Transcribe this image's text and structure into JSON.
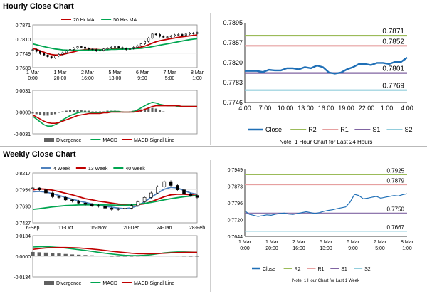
{
  "titles": {
    "hourly": "Hourly Close Chart",
    "weekly": "Weekly Close Chart"
  },
  "colors": {
    "price_line": "#1f6fb6",
    "ma_red": "#c00000",
    "ma_green": "#00a550",
    "ma_blue": "#4f81bd",
    "r2": "#9bbb59",
    "r1": "#e6a0a0",
    "s1": "#8064a2",
    "s2": "#92cddc",
    "divergence": "#606060",
    "grid": "#e0e0e0",
    "axis": "#000000"
  },
  "chart_data": [
    {
      "id": "hourly-candles",
      "type": "candlestick",
      "title": "",
      "legend": [
        "20 Hr MA",
        "50 Hrs MA"
      ],
      "legend_position": "top",
      "yticks": [
        "0.7871",
        "0.7810",
        "0.7749",
        "0.7688"
      ],
      "ylim": [
        0.7688,
        0.7871
      ],
      "xticks": [
        [
          "1 Mar",
          "0:00"
        ],
        [
          "1 Mar",
          "20:00"
        ],
        [
          "2 Mar",
          "16:00"
        ],
        [
          "5 Mar",
          "13:00"
        ],
        [
          "6 Mar",
          "9:00"
        ],
        [
          "7 Mar",
          "5:00"
        ],
        [
          "8 Mar",
          "1:00"
        ]
      ],
      "series": [
        {
          "name": "Close",
          "values": [
            0.7765,
            0.7758,
            0.7748,
            0.7742,
            0.7735,
            0.773,
            0.7738,
            0.7745,
            0.7752,
            0.776,
            0.7766,
            0.7772,
            0.7778,
            0.7776,
            0.777,
            0.7768,
            0.7765,
            0.776,
            0.7762,
            0.7768,
            0.7772,
            0.7775,
            0.7778,
            0.7774,
            0.777,
            0.7766,
            0.777,
            0.7775,
            0.7782,
            0.779,
            0.78,
            0.7815,
            0.7832,
            0.783,
            0.7822,
            0.7818,
            0.782,
            0.7824,
            0.7828,
            0.783,
            0.7826,
            0.7832,
            0.7836,
            0.7834,
            0.7838
          ]
        },
        {
          "name": "20 Hr MA",
          "values": [
            0.777,
            0.7766,
            0.776,
            0.7754,
            0.7748,
            0.7744,
            0.7742,
            0.7742,
            0.7744,
            0.7748,
            0.7752,
            0.7756,
            0.776,
            0.7763,
            0.7765,
            0.7766,
            0.7766,
            0.7766,
            0.7765,
            0.7765,
            0.7766,
            0.7767,
            0.7769,
            0.777,
            0.777,
            0.777,
            0.777,
            0.7771,
            0.7773,
            0.7776,
            0.778,
            0.7786,
            0.7793,
            0.7799,
            0.7803,
            0.7806,
            0.7809,
            0.7812,
            0.7815,
            0.7818,
            0.782,
            0.7822,
            0.7824,
            0.7826,
            0.7828
          ]
        },
        {
          "name": "50 Hrs MA",
          "values": [
            0.779,
            0.7786,
            0.7782,
            0.7778,
            0.7774,
            0.7771,
            0.7768,
            0.7766,
            0.7764,
            0.7763,
            0.7762,
            0.7762,
            0.7762,
            0.7762,
            0.7763,
            0.7763,
            0.7764,
            0.7764,
            0.7764,
            0.7765,
            0.7765,
            0.7766,
            0.7766,
            0.7767,
            0.7767,
            0.7768,
            0.7768,
            0.7769,
            0.777,
            0.7771,
            0.7773,
            0.7775,
            0.7778,
            0.7781,
            0.7784,
            0.7787,
            0.779,
            0.7793,
            0.7796,
            0.7799,
            0.7802,
            0.7805,
            0.7808,
            0.781,
            0.7812
          ]
        }
      ]
    },
    {
      "id": "hourly-macd",
      "type": "bar+line",
      "yticks": [
        "0.0031",
        "0.0000",
        "-0.0031"
      ],
      "ylim": [
        -0.0031,
        0.0031
      ],
      "legend": [
        "Divergence",
        "MACD",
        "MACD Signal Line"
      ],
      "legend_position": "bottom",
      "series": [
        {
          "name": "Divergence",
          "values": [
            -0.0002,
            -0.0003,
            -0.0004,
            -0.0005,
            -0.0005,
            -0.0004,
            -0.0003,
            -0.0001,
            0.0001,
            0.0002,
            0.0003,
            0.0003,
            0.0003,
            0.0003,
            0.0002,
            0.0002,
            0.0001,
            0.0001,
            0.0001,
            0.0001,
            0.0002,
            0.0002,
            0.0002,
            0.0001,
            0.0001,
            0.0,
            0.0001,
            0.0002,
            0.0003,
            0.0004,
            0.0005,
            0.0006,
            0.0006,
            0.0005,
            0.0003,
            0.0001,
            0.0,
            0.0,
            0.0,
            0.0,
            0.0,
            0.0,
            0.0,
            0.0,
            0.0
          ]
        },
        {
          "name": "MACD",
          "values": [
            -0.0006,
            -0.001,
            -0.0014,
            -0.0018,
            -0.002,
            -0.002,
            -0.0018,
            -0.0015,
            -0.0011,
            -0.0008,
            -0.0005,
            -0.0003,
            -0.0001,
            0.0,
            0.0,
            0.0,
            -0.0001,
            -0.0001,
            -0.0001,
            0.0,
            0.0,
            0.0001,
            0.0001,
            0.0001,
            0.0,
            0.0,
            0.0,
            0.0001,
            0.0003,
            0.0006,
            0.0009,
            0.0012,
            0.0014,
            0.0013,
            0.0011,
            0.001,
            0.0009,
            0.0009,
            0.0009,
            0.0008,
            0.0008,
            0.0008,
            0.0008,
            0.0008,
            0.0008
          ]
        },
        {
          "name": "MACD Signal Line",
          "values": [
            -0.0004,
            -0.0007,
            -0.001,
            -0.0013,
            -0.0015,
            -0.0016,
            -0.0016,
            -0.0015,
            -0.0013,
            -0.0011,
            -0.0009,
            -0.0007,
            -0.0005,
            -0.0004,
            -0.0003,
            -0.0002,
            -0.0002,
            -0.0002,
            -0.0002,
            -0.0001,
            -0.0001,
            0.0,
            0.0,
            0.0,
            0.0,
            0.0,
            0.0,
            0.0,
            0.0001,
            0.0002,
            0.0004,
            0.0006,
            0.0008,
            0.0009,
            0.0009,
            0.0009,
            0.0009,
            0.0009,
            0.0009,
            0.0009,
            0.0008,
            0.0008,
            0.0008,
            0.0008,
            0.0008
          ]
        }
      ]
    },
    {
      "id": "hourly-levels",
      "type": "line",
      "yticks": [
        "0.7895",
        "0.7857",
        "0.7820",
        "0.7783",
        "0.7746"
      ],
      "ylim": [
        0.7746,
        0.7895
      ],
      "xticks": [
        "4:00",
        "7:00",
        "10:00",
        "13:00",
        "16:00",
        "19:00",
        "22:00",
        "1:00",
        "4:00"
      ],
      "legend": [
        "Close",
        "R2",
        "R1",
        "S1",
        "S2"
      ],
      "legend_position": "bottom",
      "note": "Note: 1 Hour Chart for Last 24 Hours",
      "levels": [
        {
          "name": "R2",
          "value": 0.7871,
          "label": "0.7871"
        },
        {
          "name": "R1",
          "value": 0.7852,
          "label": "0.7852"
        },
        {
          "name": "S1",
          "value": 0.7801,
          "label": "0.7801"
        },
        {
          "name": "S2",
          "value": 0.7769,
          "label": "0.7769"
        }
      ],
      "series": [
        {
          "name": "Close",
          "values": [
            0.7805,
            0.7805,
            0.7805,
            0.7803,
            0.7807,
            0.7806,
            0.7806,
            0.781,
            0.781,
            0.7808,
            0.7812,
            0.781,
            0.7815,
            0.7812,
            0.7802,
            0.78,
            0.7802,
            0.7808,
            0.7812,
            0.7818,
            0.7818,
            0.7816,
            0.782,
            0.782,
            0.7818,
            0.7822,
            0.7822,
            0.783
          ]
        }
      ]
    },
    {
      "id": "weekly-candles",
      "type": "candlestick",
      "legend": [
        "4 Week",
        "13 Week",
        "40 Week"
      ],
      "legend_position": "top",
      "yticks": [
        "0.8217",
        "0.7954",
        "0.7690",
        "0.7427"
      ],
      "ylim": [
        0.7427,
        0.8217
      ],
      "xticks": [
        "6-Sep",
        "11-Oct",
        "15-Nov",
        "20-Dec",
        "24-Jan",
        "28-Feb"
      ],
      "series": [
        {
          "name": "Close",
          "values": [
            0.798,
            0.795,
            0.79,
            0.784,
            0.783,
            0.779,
            0.777,
            0.774,
            0.772,
            0.77,
            0.769,
            0.766,
            0.764,
            0.765,
            0.766,
            0.77,
            0.776,
            0.783,
            0.79,
            0.8,
            0.808,
            0.802,
            0.795,
            0.788,
            0.786,
            0.783
          ]
        },
        {
          "name": "4 Week",
          "values": [
            0.792,
            0.7925,
            0.7915,
            0.789,
            0.786,
            0.783,
            0.78,
            0.7775,
            0.775,
            0.7725,
            0.7705,
            0.769,
            0.7675,
            0.766,
            0.765,
            0.7665,
            0.77,
            0.776,
            0.783,
            0.79,
            0.796,
            0.799,
            0.798,
            0.794,
            0.79,
            0.788
          ]
        },
        {
          "name": "13 Week",
          "values": [
            0.795,
            0.7965,
            0.796,
            0.7945,
            0.792,
            0.7895,
            0.787,
            0.784,
            0.781,
            0.779,
            0.777,
            0.7755,
            0.774,
            0.7725,
            0.7715,
            0.771,
            0.7715,
            0.773,
            0.776,
            0.78,
            0.784,
            0.787,
            0.788,
            0.788,
            0.787,
            0.786
          ]
        },
        {
          "name": "40 Week",
          "values": [
            0.764,
            0.765,
            0.7665,
            0.768,
            0.769,
            0.77,
            0.7705,
            0.771,
            0.7712,
            0.7712,
            0.7712,
            0.771,
            0.7708,
            0.7705,
            0.7705,
            0.771,
            0.772,
            0.7735,
            0.775,
            0.777,
            0.779,
            0.781,
            0.7825,
            0.784,
            0.785,
            0.786
          ]
        }
      ]
    },
    {
      "id": "weekly-macd",
      "type": "bar+line",
      "yticks": [
        "0.0134",
        "0.0000",
        "-0.0134"
      ],
      "ylim": [
        -0.0134,
        0.0134
      ],
      "legend": [
        "Divergence",
        "MACD",
        "MACD Signal Line"
      ],
      "legend_position": "bottom",
      "series": [
        {
          "name": "Divergence",
          "values": [
            0.0028,
            0.0026,
            0.0024,
            0.0022,
            0.0018,
            0.0015,
            0.0012,
            0.001,
            0.0008,
            0.0006,
            0.0004,
            0.0002,
            0.0,
            -0.0001,
            -0.0002,
            -0.0001,
            0.0001,
            0.0002,
            0.0003,
            0.0004,
            0.0004,
            0.0003,
            0.0002,
            0.0001,
            0.0,
            0.0
          ]
        },
        {
          "name": "MACD",
          "values": [
            0.006,
            0.0062,
            0.0062,
            0.006,
            0.0057,
            0.0053,
            0.0048,
            0.0043,
            0.0038,
            0.0032,
            0.0026,
            0.002,
            0.0015,
            0.001,
            0.0006,
            0.0004,
            0.0004,
            0.0006,
            0.001,
            0.0016,
            0.0022,
            0.0026,
            0.0028,
            0.0028,
            0.0027,
            0.0026
          ]
        },
        {
          "name": "MACD Signal Line",
          "values": [
            0.0045,
            0.005,
            0.0054,
            0.0056,
            0.0057,
            0.0057,
            0.0056,
            0.0054,
            0.0051,
            0.0047,
            0.0043,
            0.0038,
            0.0033,
            0.0028,
            0.0024,
            0.002,
            0.0017,
            0.0016,
            0.0016,
            0.0018,
            0.002,
            0.0022,
            0.0024,
            0.0025,
            0.0026,
            0.0026
          ]
        }
      ]
    },
    {
      "id": "weekly-levels",
      "type": "line",
      "yticks": [
        "0.7949",
        "0.7873",
        "0.7796",
        "0.7720",
        "0.7644"
      ],
      "ylim": [
        0.7644,
        0.7949
      ],
      "xticks": [
        [
          "1 Mar",
          "0:00"
        ],
        [
          "1 Mar",
          "20:00"
        ],
        [
          "2 Mar",
          "16:00"
        ],
        [
          "5 Mar",
          "13:00"
        ],
        [
          "6 Mar",
          "9:00"
        ],
        [
          "7 Mar",
          "5:00"
        ],
        [
          "8 Mar",
          "1:00"
        ]
      ],
      "legend": [
        "Close",
        "R2",
        "R1",
        "S1",
        "S2"
      ],
      "legend_position": "bottom",
      "note": "Note: 1 Hour Chart for Last 1 Week",
      "levels": [
        {
          "name": "R2",
          "value": 0.7925,
          "label": "0.7925"
        },
        {
          "name": "R1",
          "value": 0.7879,
          "label": "0.7879"
        },
        {
          "name": "S1",
          "value": 0.775,
          "label": "0.7750"
        },
        {
          "name": "S2",
          "value": 0.7667,
          "label": "0.7667"
        }
      ],
      "series": [
        {
          "name": "Close",
          "values": [
            0.776,
            0.7745,
            0.774,
            0.7735,
            0.7738,
            0.7742,
            0.774,
            0.7745,
            0.7748,
            0.775,
            0.7746,
            0.7744,
            0.7748,
            0.7752,
            0.7756,
            0.7752,
            0.7748,
            0.7752,
            0.7758,
            0.7762,
            0.7765,
            0.777,
            0.7774,
            0.7778,
            0.78,
            0.7835,
            0.783,
            0.7815,
            0.7818,
            0.7822,
            0.7826,
            0.7818,
            0.7822,
            0.7826,
            0.783,
            0.7828,
            0.7834,
            0.7838
          ]
        }
      ]
    }
  ]
}
